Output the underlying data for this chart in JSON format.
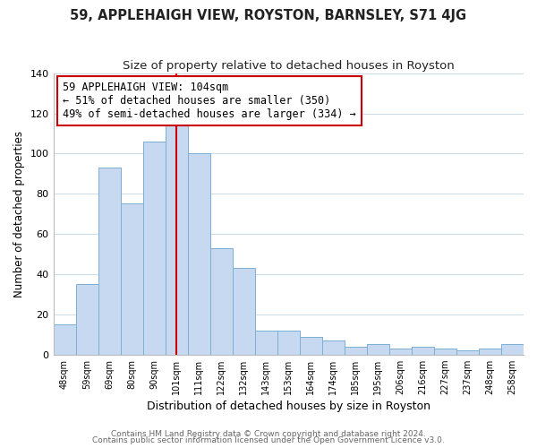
{
  "title": "59, APPLEHAIGH VIEW, ROYSTON, BARNSLEY, S71 4JG",
  "subtitle": "Size of property relative to detached houses in Royston",
  "xlabel": "Distribution of detached houses by size in Royston",
  "ylabel": "Number of detached properties",
  "bar_labels": [
    "48sqm",
    "59sqm",
    "69sqm",
    "80sqm",
    "90sqm",
    "101sqm",
    "111sqm",
    "122sqm",
    "132sqm",
    "143sqm",
    "153sqm",
    "164sqm",
    "174sqm",
    "185sqm",
    "195sqm",
    "206sqm",
    "216sqm",
    "227sqm",
    "237sqm",
    "248sqm",
    "258sqm"
  ],
  "bar_values": [
    15,
    35,
    93,
    75,
    106,
    114,
    100,
    53,
    43,
    12,
    12,
    9,
    7,
    4,
    5,
    3,
    4,
    3,
    2,
    3,
    5
  ],
  "bar_color": "#c6d9f0",
  "bar_edge_color": "#7bafd4",
  "highlight_bar_index": 5,
  "highlight_line_color": "#cc0000",
  "annotation_text": "59 APPLEHAIGH VIEW: 104sqm\n← 51% of detached houses are smaller (350)\n49% of semi-detached houses are larger (334) →",
  "annotation_box_edgecolor": "#cc0000",
  "annotation_fontsize": 8.5,
  "ylim": [
    0,
    140
  ],
  "yticks": [
    0,
    20,
    40,
    60,
    80,
    100,
    120,
    140
  ],
  "title_fontsize": 10.5,
  "subtitle_fontsize": 9.5,
  "xlabel_fontsize": 9,
  "ylabel_fontsize": 8.5,
  "footer_line1": "Contains HM Land Registry data © Crown copyright and database right 2024.",
  "footer_line2": "Contains public sector information licensed under the Open Government Licence v3.0.",
  "footer_fontsize": 6.5,
  "background_color": "#ffffff",
  "grid_color": "#ccd9e8"
}
